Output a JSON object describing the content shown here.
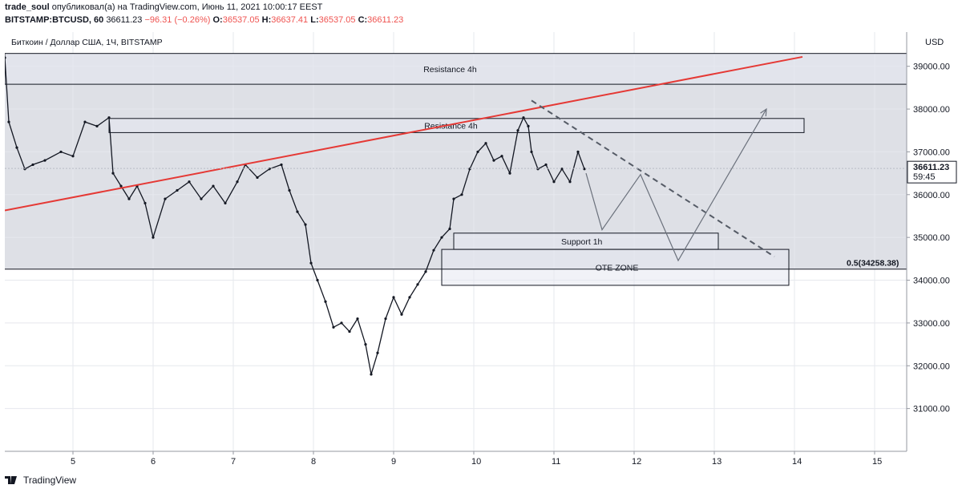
{
  "header": {
    "author": "trade_soul",
    "published_text": "опубликовал(а) на TradingView.com, Июнь 11, 2021 10:00:17 EEST",
    "symbol": "BITSTAMP:BTCUSD, 60",
    "last": "36611.23",
    "change": "−96.31 (−0.26%)",
    "o_label": "O:",
    "o_value": "36537.05",
    "h_label": "H:",
    "h_value": "36637.41",
    "l_label": "L:",
    "l_value": "36537.05",
    "c_label": "C:",
    "c_value": "36611.23"
  },
  "chart_title": "Биткоин / Доллар США, 1Ч, BITSTAMP",
  "footer": {
    "brand": "TradingView"
  },
  "colors": {
    "candle": "#131722",
    "trendline": "#e53935",
    "zone_shade": "#d6d8e0",
    "grid": "#e6e8ee",
    "negative": "#ef5350"
  },
  "chart_data": {
    "type": "candlestick",
    "currency_label": "USD",
    "ylim": [
      30000,
      39800
    ],
    "y_ticks": [
      "31000.00",
      "32000.00",
      "33000.00",
      "34000.00",
      "35000.00",
      "36000.00",
      "37000.00",
      "38000.00",
      "39000.00"
    ],
    "x_ticks": [
      "5",
      "6",
      "7",
      "8",
      "9",
      "10",
      "11",
      "12",
      "13",
      "14",
      "15"
    ],
    "xlim": [
      4.15,
      15.4
    ],
    "grid": true,
    "last_price": "36611.23",
    "countdown": "59:45",
    "fib_label": "0.5(34258.38)",
    "fib_level": 34258.38,
    "closes": [
      {
        "day": 4.15,
        "close": 39200
      },
      {
        "day": 4.2,
        "close": 37700
      },
      {
        "day": 4.3,
        "close": 37100
      },
      {
        "day": 4.4,
        "close": 36600
      },
      {
        "day": 4.5,
        "close": 36700
      },
      {
        "day": 4.65,
        "close": 36800
      },
      {
        "day": 4.85,
        "close": 37000
      },
      {
        "day": 5.0,
        "close": 36900
      },
      {
        "day": 5.15,
        "close": 37700
      },
      {
        "day": 5.3,
        "close": 37600
      },
      {
        "day": 5.45,
        "close": 37800
      },
      {
        "day": 5.5,
        "close": 36500
      },
      {
        "day": 5.6,
        "close": 36200
      },
      {
        "day": 5.7,
        "close": 35900
      },
      {
        "day": 5.8,
        "close": 36200
      },
      {
        "day": 5.9,
        "close": 35800
      },
      {
        "day": 6.0,
        "close": 35000
      },
      {
        "day": 6.15,
        "close": 35900
      },
      {
        "day": 6.3,
        "close": 36100
      },
      {
        "day": 6.45,
        "close": 36300
      },
      {
        "day": 6.6,
        "close": 35900
      },
      {
        "day": 6.75,
        "close": 36200
      },
      {
        "day": 6.9,
        "close": 35800
      },
      {
        "day": 7.05,
        "close": 36300
      },
      {
        "day": 7.15,
        "close": 36700
      },
      {
        "day": 7.3,
        "close": 36400
      },
      {
        "day": 7.45,
        "close": 36600
      },
      {
        "day": 7.6,
        "close": 36700
      },
      {
        "day": 7.7,
        "close": 36100
      },
      {
        "day": 7.8,
        "close": 35600
      },
      {
        "day": 7.9,
        "close": 35300
      },
      {
        "day": 7.97,
        "close": 34400
      },
      {
        "day": 8.05,
        "close": 34000
      },
      {
        "day": 8.15,
        "close": 33500
      },
      {
        "day": 8.25,
        "close": 32900
      },
      {
        "day": 8.35,
        "close": 33000
      },
      {
        "day": 8.45,
        "close": 32800
      },
      {
        "day": 8.55,
        "close": 33100
      },
      {
        "day": 8.65,
        "close": 32500
      },
      {
        "day": 8.72,
        "close": 31800
      },
      {
        "day": 8.8,
        "close": 32300
      },
      {
        "day": 8.9,
        "close": 33100
      },
      {
        "day": 9.0,
        "close": 33600
      },
      {
        "day": 9.1,
        "close": 33200
      },
      {
        "day": 9.2,
        "close": 33600
      },
      {
        "day": 9.3,
        "close": 33900
      },
      {
        "day": 9.4,
        "close": 34200
      },
      {
        "day": 9.5,
        "close": 34700
      },
      {
        "day": 9.6,
        "close": 35000
      },
      {
        "day": 9.7,
        "close": 35200
      },
      {
        "day": 9.75,
        "close": 35900
      },
      {
        "day": 9.85,
        "close": 36000
      },
      {
        "day": 9.95,
        "close": 36600
      },
      {
        "day": 10.05,
        "close": 37000
      },
      {
        "day": 10.15,
        "close": 37200
      },
      {
        "day": 10.25,
        "close": 36800
      },
      {
        "day": 10.35,
        "close": 36900
      },
      {
        "day": 10.45,
        "close": 36500
      },
      {
        "day": 10.55,
        "close": 37500
      },
      {
        "day": 10.62,
        "close": 37800
      },
      {
        "day": 10.68,
        "close": 37600
      },
      {
        "day": 10.72,
        "close": 37000
      },
      {
        "day": 10.8,
        "close": 36600
      },
      {
        "day": 10.9,
        "close": 36700
      },
      {
        "day": 11.0,
        "close": 36300
      },
      {
        "day": 11.1,
        "close": 36600
      },
      {
        "day": 11.2,
        "close": 36300
      },
      {
        "day": 11.3,
        "close": 37000
      },
      {
        "day": 11.38,
        "close": 36600
      }
    ],
    "annotations": [
      {
        "type": "zone",
        "label": "Resistance 4h",
        "x1": 4.15,
        "x2": 15.4,
        "y1": 38580,
        "y2": 39300
      },
      {
        "type": "zone",
        "label": "Resistance 4h",
        "x1": 5.45,
        "x2": 14.12,
        "y1": 37450,
        "y2": 37780
      },
      {
        "type": "zone",
        "label": "Support 1h",
        "x1": 9.75,
        "x2": 13.05,
        "y1": 34720,
        "y2": 35100
      },
      {
        "type": "zone",
        "label": "OTE ZONE",
        "x1": 9.6,
        "x2": 13.93,
        "y1": 33880,
        "y2": 34720
      },
      {
        "type": "trendline",
        "label": "",
        "x1": 4.15,
        "y1": 35630,
        "x2": 14.1,
        "y2": 39220
      },
      {
        "type": "dashed-trendline",
        "label": "",
        "x1": 10.72,
        "y1": 38200,
        "x2": 13.75,
        "y2": 34550
      },
      {
        "type": "projected-path",
        "label": "",
        "points": [
          [
            11.4,
            36500
          ],
          [
            11.6,
            35180
          ],
          [
            12.08,
            36470
          ],
          [
            12.55,
            34460
          ],
          [
            13.65,
            38000
          ]
        ]
      }
    ]
  }
}
